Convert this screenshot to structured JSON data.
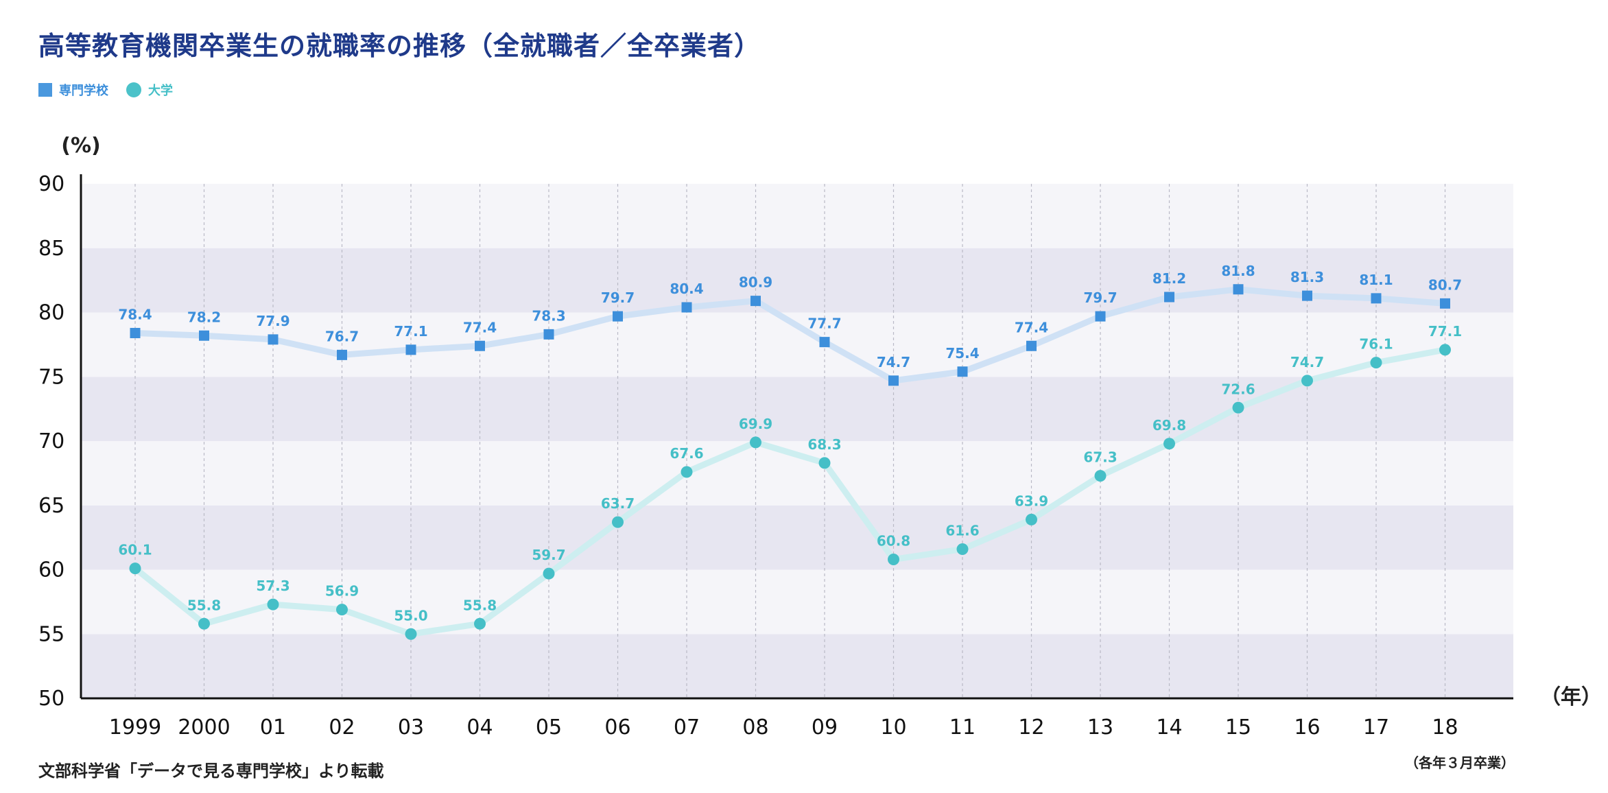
{
  "title": "高等教育機関卒業生の就職率の推移（全就職者／全卒業者）",
  "legend": [
    {
      "label": "専門学校",
      "shape": "square",
      "color": "#4a98de"
    },
    {
      "label": "大学",
      "shape": "circle",
      "color": "#4bc2c9"
    }
  ],
  "source": "文部科学省「データで見る専門学校」より転載",
  "note": "（各年３月卒業）",
  "chart_data": {
    "type": "line",
    "ylabel": "(%)",
    "xlabel": "（年）",
    "ylim": [
      50,
      90
    ],
    "yticks": [
      50,
      55,
      60,
      65,
      70,
      75,
      80,
      85,
      90
    ],
    "categories": [
      "1999",
      "2000",
      "01",
      "02",
      "03",
      "04",
      "05",
      "06",
      "07",
      "08",
      "09",
      "10",
      "11",
      "12",
      "13",
      "14",
      "15",
      "16",
      "17",
      "18"
    ],
    "series": [
      {
        "name": "専門学校",
        "marker": "square",
        "color": "#3d8fdb",
        "line_color": "#cfe1f5",
        "label_color": "#3d8fdb",
        "values": [
          78.4,
          78.2,
          77.9,
          76.7,
          77.1,
          77.4,
          78.3,
          79.7,
          80.4,
          80.9,
          77.7,
          74.7,
          75.4,
          77.4,
          79.7,
          81.2,
          81.8,
          81.3,
          81.1,
          80.7
        ]
      },
      {
        "name": "大学",
        "marker": "circle",
        "color": "#45bfc7",
        "line_color": "#cdeef0",
        "label_color": "#45bfc7",
        "values": [
          60.1,
          55.8,
          57.3,
          56.9,
          55.0,
          55.8,
          59.7,
          63.7,
          67.6,
          69.9,
          68.3,
          60.8,
          61.6,
          63.9,
          67.3,
          69.8,
          72.6,
          74.7,
          76.1,
          77.1
        ]
      }
    ],
    "grid": "vertical-dashed",
    "bands": [
      "#f5f5f9",
      "#e7e6f1"
    ]
  }
}
